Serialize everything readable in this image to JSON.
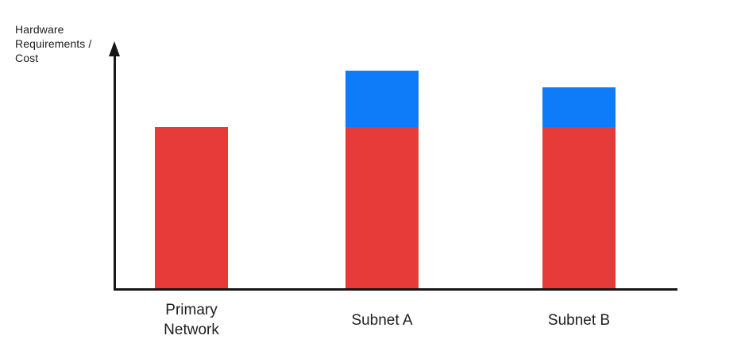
{
  "chart_data": {
    "type": "bar",
    "stacked": true,
    "title": "",
    "xlabel": "",
    "ylabel": "Hardware\nRequirements /\nCost",
    "categories": [
      "Primary Network",
      "Subnet A",
      "Subnet B"
    ],
    "series": [
      {
        "name": "red",
        "color": "#E63B38",
        "values": [
          100,
          100,
          100
        ]
      },
      {
        "name": "blue",
        "color": "#0E7BF9",
        "values": [
          0,
          35,
          25
        ]
      }
    ],
    "ylim": [
      0,
      152
    ],
    "grid": false,
    "legend": false,
    "axis_color": "#161616",
    "text_color": "#1E1E1E",
    "background": "#FFFFFF"
  }
}
